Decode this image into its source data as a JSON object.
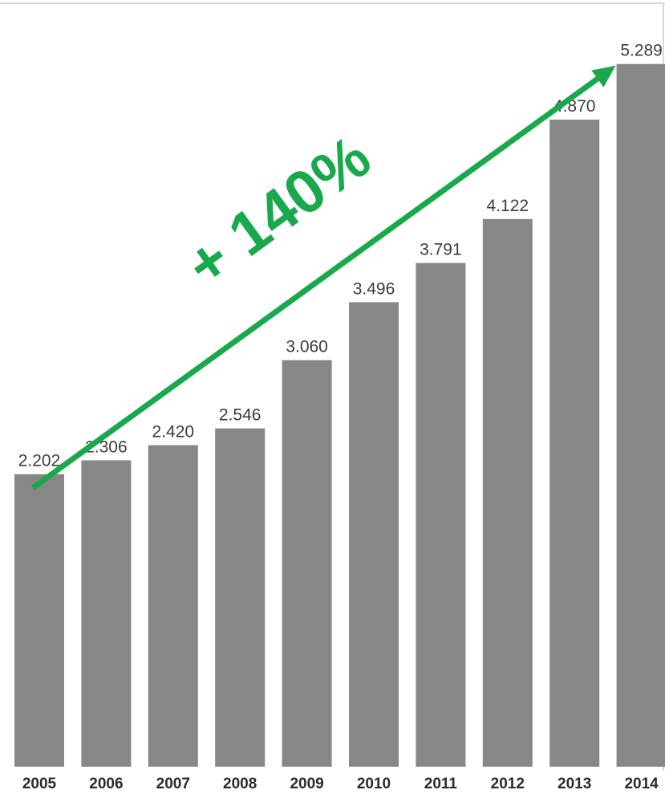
{
  "chart_data": {
    "type": "bar",
    "categories": [
      "2005",
      "2006",
      "2007",
      "2008",
      "2009",
      "2010",
      "2011",
      "2012",
      "2013",
      "2014"
    ],
    "values": [
      2.202,
      2.306,
      2.42,
      2.546,
      3.06,
      3.496,
      3.791,
      4.122,
      4.87,
      5.289
    ],
    "value_labels": [
      "2.202",
      "2.306",
      "2.420",
      "2.546",
      "3.060",
      "3.496",
      "3.791",
      "4.122",
      "4.870",
      "5.289"
    ],
    "title": "",
    "xlabel": "",
    "ylabel": "",
    "ylim": [
      0,
      5.5
    ],
    "grid": false,
    "legend": "none",
    "annotation": {
      "text": "+ 140%",
      "from_category": "2005",
      "to_category": "2014"
    }
  },
  "colors": {
    "bar": "#878787",
    "annotation": "#19a94c",
    "value_text": "#3c3c3c",
    "tick_text": "#2b2b2b",
    "frame": "#d8d8d8"
  }
}
